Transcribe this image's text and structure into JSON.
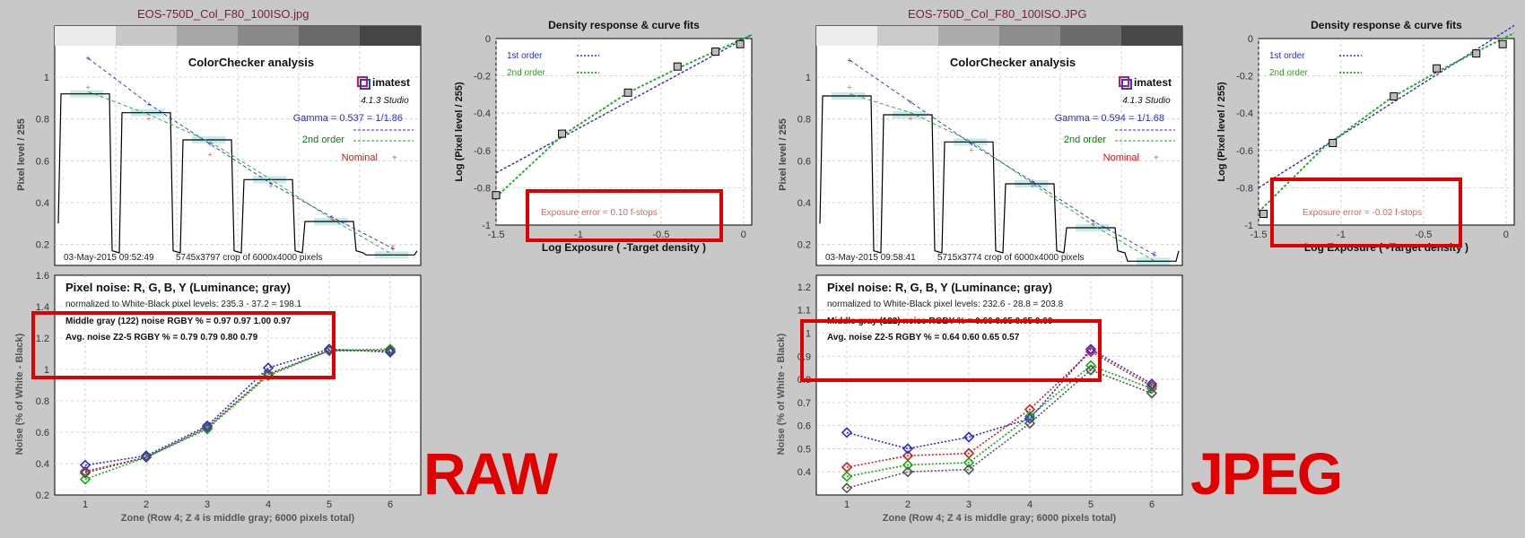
{
  "colors": {
    "blue": "#2a2ae0",
    "green": "#12b012",
    "red": "#e01818",
    "gray": "#555555",
    "highlight": "#e00000",
    "title": "#7a1a4a",
    "nominal": "#e05a5a",
    "band": "#8fd8d8"
  },
  "raw": {
    "file_title": "EOS-750D_Col_F80_100ISO.jpg",
    "big_label": "RAW",
    "cc": {
      "heading": "ColorChecker analysis",
      "logo": "imatest",
      "version": "4.1.3  Studio",
      "gamma": "Gamma = 0.537 = 1/1.86",
      "legend_2nd": "2nd order",
      "legend_nominal": "Nominal",
      "footer_date": "03-May-2015 09:52:49",
      "footer_crop": "5745x3797 crop of 6000x4000 pixels",
      "ylabel": "Pixel level / 255",
      "yticks": [
        "1",
        "0.8",
        "0.6",
        "0.4",
        "0.2"
      ]
    },
    "density": {
      "title": "Density response & curve fits",
      "legend1": "1st order",
      "legend2": "2nd order",
      "exposure_error": "Exposure error = 0.10 f-stops",
      "xlabel": "Log Exposure ( -Target density )",
      "ylabel": "Log (Pixel level / 255)",
      "xticks": [
        "-1.5",
        "-1",
        "-0.5",
        "0"
      ],
      "yticks": [
        "0",
        "-0.2",
        "-0.4",
        "-0.6",
        "-0.8",
        "-1"
      ]
    },
    "noise": {
      "heading": "Pixel noise: R, G, B, Y (Luminance; gray)",
      "normalized": "normalized to White-Black pixel levels: 235.3 - 37.2 = 198.1",
      "middle_gray": "Middle gray (122) noise RGBY % = 0.97  0.97  1.00  0.97",
      "avg_noise": "Avg. noise Z2-5 RGBY % = 0.79  0.79  0.80  0.79",
      "xlabel": "Zone  (Row 4;  Z 4 is middle gray;  6000 pixels total)",
      "ylabel": "Noise (% of White - Black)",
      "yticks": [
        "1.6",
        "1.4",
        "1.2",
        "1",
        "0.8",
        "0.6",
        "0.4",
        "0.2"
      ],
      "xticks": [
        "1",
        "2",
        "3",
        "4",
        "5",
        "6"
      ]
    }
  },
  "jpeg": {
    "file_title": "EOS-750D_Col_F80_100ISO.JPG",
    "big_label": "JPEG",
    "cc": {
      "heading": "ColorChecker analysis",
      "logo": "imatest",
      "version": "4.1.3  Studio",
      "gamma": "Gamma = 0.594 = 1/1.68",
      "legend_2nd": "2nd order",
      "legend_nominal": "Nominal",
      "footer_date": "03-May-2015 09:58:41",
      "footer_crop": "5715x3774 crop of 6000x4000 pixels",
      "ylabel": "Pixel level / 255",
      "yticks": [
        "1",
        "0.8",
        "0.6",
        "0.4",
        "0.2"
      ]
    },
    "density": {
      "title": "Density response & curve fits",
      "legend1": "1st order",
      "legend2": "2nd order",
      "exposure_error": "Exposure error = -0.02 f-stops",
      "xlabel": "Log Exposure ( -Target density )",
      "ylabel": "Log (Pixel level / 255)",
      "xticks": [
        "-1.5",
        "-1",
        "-0.5",
        "0"
      ],
      "yticks": [
        "0",
        "-0.2",
        "-0.4",
        "-0.6",
        "-0.8",
        "-1"
      ]
    },
    "noise": {
      "heading": "Pixel noise: R, G, B, Y (Luminance; gray)",
      "normalized": "normalized to White-Black pixel levels: 232.6 - 28.8 = 203.8",
      "middle_gray": "Middle gray (122) noise RGBY % = 0.66  0.65  0.65  0.60",
      "avg_noise": "Avg. noise Z2-5 RGBY % = 0.64  0.60  0.65  0.57",
      "xlabel": "Zone  (Row 4;  Z 4 is middle gray;  6000 pixels total)",
      "ylabel": "Noise (% of White - Black)",
      "yticks": [
        "1.2",
        "1.1",
        "1",
        "0.9",
        "0.8",
        "0.7",
        "0.6",
        "0.5",
        "0.4"
      ],
      "xticks": [
        "1",
        "2",
        "3",
        "4",
        "5",
        "6"
      ]
    }
  },
  "chart_data": [
    {
      "type": "line",
      "title": "ColorChecker analysis",
      "ylabel": "Pixel level / 255",
      "ylim": [
        0.1,
        1.15
      ],
      "grid": true,
      "series": [
        {
          "name": "Gamma = 0.537 = 1/1.86",
          "values": [
            1.09,
            0.87,
            0.68,
            0.49,
            0.33,
            0.18
          ]
        },
        {
          "name": "2nd order",
          "values": [
            0.93,
            0.82,
            0.69,
            0.51,
            0.32,
            0.15
          ]
        },
        {
          "name": "Nominal",
          "values": [
            0.95,
            0.8,
            0.63,
            0.48,
            0.32,
            0.19
          ]
        }
      ],
      "patch_levels": [
        0.92,
        0.83,
        0.7,
        0.51,
        0.31,
        0.15
      ]
    },
    {
      "type": "line",
      "title": "Density response & curve fits",
      "xlabel": "Log Exposure ( -Target density )",
      "ylabel": "Log (Pixel level / 255)",
      "xlim": [
        -1.5,
        0.05
      ],
      "ylim": [
        -1,
        0
      ],
      "grid": true,
      "series": [
        {
          "name": "1st order",
          "x": [
            -1.5,
            0.05
          ],
          "y": [
            -0.72,
            0.02
          ]
        },
        {
          "name": "2nd order",
          "x": [
            -1.5,
            -1.1,
            -0.7,
            -0.4,
            -0.2,
            0.05
          ],
          "y": [
            -0.85,
            -0.52,
            -0.29,
            -0.16,
            -0.08,
            0.02
          ]
        }
      ],
      "points": {
        "x": [
          -1.5,
          -1.1,
          -0.7,
          -0.4,
          -0.17,
          -0.02
        ],
        "y": [
          -0.84,
          -0.51,
          -0.29,
          -0.15,
          -0.07,
          -0.03
        ]
      }
    },
    {
      "type": "line",
      "title": "Pixel noise: R, G, B, Y (Luminance; gray)",
      "xlabel": "Zone  (Row 4;  Z 4 is middle gray;  6000 pixels total)",
      "ylabel": "Noise (% of White - Black)",
      "x": [
        1,
        2,
        3,
        4,
        5,
        6
      ],
      "ylim": [
        0.2,
        1.6
      ],
      "grid": true,
      "series": [
        {
          "name": "R",
          "values": [
            0.35,
            0.44,
            0.63,
            0.97,
            1.12,
            1.12
          ]
        },
        {
          "name": "G",
          "values": [
            0.3,
            0.44,
            0.62,
            0.96,
            1.12,
            1.13
          ]
        },
        {
          "name": "B",
          "values": [
            0.39,
            0.45,
            0.64,
            1.01,
            1.13,
            1.11
          ]
        },
        {
          "name": "Y",
          "values": [
            0.34,
            0.44,
            0.63,
            0.97,
            1.12,
            1.12
          ]
        }
      ]
    },
    {
      "type": "line",
      "title": "ColorChecker analysis",
      "ylabel": "Pixel level / 255",
      "ylim": [
        0.1,
        1.15
      ],
      "grid": true,
      "series": [
        {
          "name": "Gamma = 0.594 = 1/1.68",
          "values": [
            1.08,
            0.88,
            0.68,
            0.5,
            0.31,
            0.15
          ]
        },
        {
          "name": "2nd order",
          "values": [
            0.92,
            0.83,
            0.69,
            0.49,
            0.29,
            0.12
          ]
        },
        {
          "name": "Nominal",
          "values": [
            0.95,
            0.8,
            0.65,
            0.48,
            0.3,
            0.16
          ]
        }
      ],
      "patch_levels": [
        0.91,
        0.82,
        0.69,
        0.49,
        0.28,
        0.12
      ]
    },
    {
      "type": "line",
      "title": "Density response & curve fits",
      "xlabel": "Log Exposure ( -Target density )",
      "ylabel": "Log (Pixel level / 255)",
      "xlim": [
        -1.5,
        0.05
      ],
      "ylim": [
        -1,
        0
      ],
      "grid": true,
      "series": [
        {
          "name": "1st order",
          "x": [
            -1.5,
            0.05
          ],
          "y": [
            -0.8,
            0.07
          ]
        },
        {
          "name": "2nd order",
          "x": [
            -1.5,
            -1.1,
            -0.7,
            -0.4,
            -0.2,
            0.05
          ],
          "y": [
            -0.93,
            -0.58,
            -0.32,
            -0.17,
            -0.08,
            0.03
          ]
        }
      ],
      "points": {
        "x": [
          -1.47,
          -1.05,
          -0.68,
          -0.42,
          -0.18,
          -0.02
        ],
        "y": [
          -0.94,
          -0.56,
          -0.31,
          -0.16,
          -0.08,
          -0.03
        ]
      }
    },
    {
      "type": "line",
      "title": "Pixel noise: R, G, B, Y (Luminance; gray)",
      "xlabel": "Zone  (Row 4;  Z 4 is middle gray;  6000 pixels total)",
      "ylabel": "Noise (% of White - Black)",
      "x": [
        1,
        2,
        3,
        4,
        5,
        6
      ],
      "ylim": [
        0.3,
        1.25
      ],
      "grid": true,
      "series": [
        {
          "name": "R",
          "values": [
            0.42,
            0.47,
            0.48,
            0.67,
            0.92,
            0.77
          ]
        },
        {
          "name": "G",
          "values": [
            0.38,
            0.43,
            0.44,
            0.64,
            0.86,
            0.76
          ]
        },
        {
          "name": "B",
          "values": [
            0.57,
            0.5,
            0.55,
            0.63,
            0.93,
            0.78
          ]
        },
        {
          "name": "Y",
          "values": [
            0.33,
            0.4,
            0.41,
            0.61,
            0.84,
            0.74
          ]
        }
      ]
    }
  ]
}
